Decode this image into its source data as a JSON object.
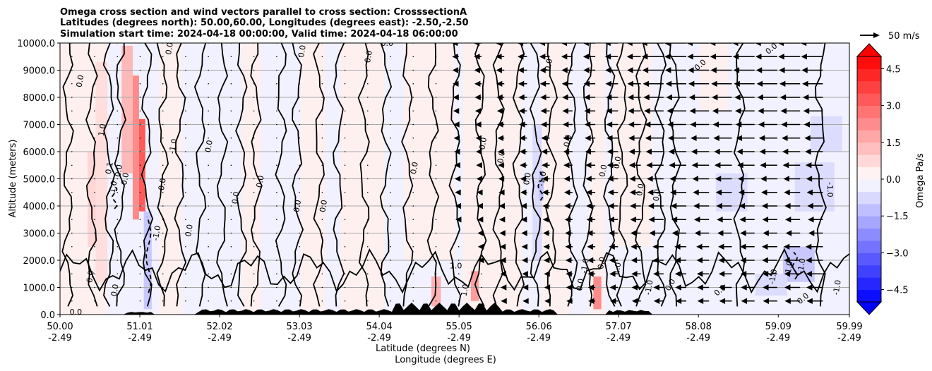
{
  "chart_data": {
    "type": "heatmap",
    "title_lines": [
      "Omega cross section and wind vectors parallel to cross section: CrosssectionA",
      "Latitudes (degrees north): 50.00,60.00, Longitudes (degrees east): -2.50,-2.50",
      "Simulation start time: 2024-04-18 00:00:00, Valid time: 2024-04-18 06:00:00"
    ],
    "ylabel": "Altitude (meters)",
    "xlabel_lat": "Latitude (degrees N)",
    "xlabel_lon": "Longitude (degrees E)",
    "xlim": [
      50.0,
      59.99
    ],
    "ylim": [
      0,
      10000
    ],
    "grid": "horizontal",
    "x_ticks": [
      {
        "lat": "50.00",
        "lon": "-2.49",
        "value": 50.0
      },
      {
        "lat": "51.01",
        "lon": "-2.49",
        "value": 51.01
      },
      {
        "lat": "52.02",
        "lon": "-2.49",
        "value": 52.02
      },
      {
        "lat": "53.03",
        "lon": "-2.49",
        "value": 53.03
      },
      {
        "lat": "54.04",
        "lon": "-2.49",
        "value": 54.04
      },
      {
        "lat": "55.05",
        "lon": "-2.49",
        "value": 55.05
      },
      {
        "lat": "56.06",
        "lon": "-2.49",
        "value": 56.06
      },
      {
        "lat": "57.07",
        "lon": "-2.49",
        "value": 57.07
      },
      {
        "lat": "58.08",
        "lon": "-2.49",
        "value": 58.08
      },
      {
        "lat": "59.09",
        "lon": "-2.49",
        "value": 59.09
      },
      {
        "lat": "59.99",
        "lon": "-2.49",
        "value": 59.99
      }
    ],
    "y_ticks": [
      {
        "label": "0.0",
        "value": 0
      },
      {
        "label": "1000.0",
        "value": 1000
      },
      {
        "label": "2000.0",
        "value": 2000
      },
      {
        "label": "3000.0",
        "value": 3000
      },
      {
        "label": "4000.0",
        "value": 4000
      },
      {
        "label": "5000.0",
        "value": 5000
      },
      {
        "label": "6000.0",
        "value": 6000
      },
      {
        "label": "7000.0",
        "value": 7000
      },
      {
        "label": "8000.0",
        "value": 8000
      },
      {
        "label": "9000.0",
        "value": 9000
      },
      {
        "label": "10000.0",
        "value": 10000
      }
    ],
    "colorbar": {
      "label": "Omega Pa/s",
      "vmin": -5.0,
      "vmax": 5.0,
      "ticks": [
        {
          "label": "4.5",
          "value": 4.5
        },
        {
          "label": "3.0",
          "value": 3.0
        },
        {
          "label": "1.5",
          "value": 1.5
        },
        {
          "label": "0.0",
          "value": 0.0
        },
        {
          "label": "−1.5",
          "value": -1.5
        },
        {
          "label": "−3.0",
          "value": -3.0
        },
        {
          "label": "−4.5",
          "value": -4.5
        }
      ]
    },
    "quiver_key": {
      "label": "50 m/s",
      "speed": 50
    },
    "contour_labels": [
      {
        "text": "0.0",
        "lat": 50.25,
        "alt": 8600,
        "rot": -80
      },
      {
        "text": "1.0",
        "lat": 50.53,
        "alt": 6800,
        "rot": -80
      },
      {
        "text": "0.1",
        "lat": 50.62,
        "alt": 5400,
        "rot": -80
      },
      {
        "text": "0.0",
        "lat": 50.74,
        "alt": 5300,
        "rot": -80
      },
      {
        "text": "0.0",
        "lat": 50.82,
        "alt": 5000,
        "rot": -80
      },
      {
        "text": "1.0",
        "lat": 50.67,
        "alt": 4700,
        "rot": -80
      },
      {
        "text": "-1.0",
        "lat": 51.22,
        "alt": 3000,
        "rot": -80
      },
      {
        "text": "0.0",
        "lat": 50.38,
        "alt": 1400,
        "rot": -80
      },
      {
        "text": "0.0",
        "lat": 50.69,
        "alt": 900,
        "rot": -80
      },
      {
        "text": "0.0",
        "lat": 51.29,
        "alt": 4800,
        "rot": -80
      },
      {
        "text": "0.0",
        "lat": 51.38,
        "alt": 9800,
        "rot": -80
      },
      {
        "text": "-1.0",
        "lat": 51.43,
        "alt": 6200,
        "rot": -80
      },
      {
        "text": "0.0",
        "lat": 51.63,
        "alt": 3100,
        "rot": -80
      },
      {
        "text": "0.0",
        "lat": 51.88,
        "alt": 6200,
        "rot": -80
      },
      {
        "text": "0.0",
        "lat": 52.22,
        "alt": 4300,
        "rot": -80
      },
      {
        "text": "0.0",
        "lat": 52.53,
        "alt": 4900,
        "rot": -80
      },
      {
        "text": "0.0",
        "lat": 53.0,
        "alt": 4000,
        "rot": -80
      },
      {
        "text": "0.0",
        "lat": 53.33,
        "alt": 4000,
        "rot": -80
      },
      {
        "text": "0.0",
        "lat": 53.06,
        "alt": 9700,
        "rot": -80
      },
      {
        "text": "0.0",
        "lat": 53.9,
        "alt": 9500,
        "rot": -80
      },
      {
        "text": "0.0",
        "lat": 54.14,
        "alt": 10000,
        "rot": 0
      },
      {
        "text": "0.0",
        "lat": 54.48,
        "alt": 5400,
        "rot": -80
      },
      {
        "text": "0.0",
        "lat": 55.35,
        "alt": 6300,
        "rot": -80
      },
      {
        "text": "0.0",
        "lat": 55.58,
        "alt": 5800,
        "rot": -80
      },
      {
        "text": "0.0",
        "lat": 55.91,
        "alt": 5000,
        "rot": -80
      },
      {
        "text": "-1.0",
        "lat": 56.1,
        "alt": 5000,
        "rot": -80
      },
      {
        "text": "0.0",
        "lat": 56.18,
        "alt": 9200,
        "rot": -80
      },
      {
        "text": "0.0",
        "lat": 56.42,
        "alt": 6400,
        "rot": -80
      },
      {
        "text": "0.0",
        "lat": 56.87,
        "alt": 5300,
        "rot": -80
      },
      {
        "text": "0.0",
        "lat": 57.05,
        "alt": 5600,
        "rot": -80
      },
      {
        "text": "0.0",
        "lat": 57.34,
        "alt": 4600,
        "rot": -80
      },
      {
        "text": "0.0",
        "lat": 57.55,
        "alt": 4400,
        "rot": -80
      },
      {
        "text": "0.0",
        "lat": 58.1,
        "alt": 9200,
        "rot": -40
      },
      {
        "text": "0.0",
        "lat": 59.0,
        "alt": 9800,
        "rot": -40
      },
      {
        "text": "-1.0",
        "lat": 59.75,
        "alt": 4600,
        "rot": 90
      },
      {
        "text": "1.0",
        "lat": 55.01,
        "alt": 1800,
        "rot": 0
      },
      {
        "text": "1.0",
        "lat": 55.12,
        "alt": 900,
        "rot": -80
      },
      {
        "text": "-1.0",
        "lat": 56.64,
        "alt": 1800,
        "rot": -80
      },
      {
        "text": "0.0",
        "lat": 56.58,
        "alt": 1100,
        "rot": -80
      },
      {
        "text": "0.0",
        "lat": 56.85,
        "alt": 1900,
        "rot": -80
      },
      {
        "text": "1.0",
        "lat": 57.05,
        "alt": 1700,
        "rot": -80
      },
      {
        "text": "-1.0",
        "lat": 57.45,
        "alt": 1000,
        "rot": -80
      },
      {
        "text": "0.0",
        "lat": 57.72,
        "alt": 1100,
        "rot": -60
      },
      {
        "text": "-1.0",
        "lat": 59.02,
        "alt": 1400,
        "rot": -80
      },
      {
        "text": "-1.0",
        "lat": 59.22,
        "alt": 1700,
        "rot": -80
      },
      {
        "text": "-1.0",
        "lat": 59.38,
        "alt": 1800,
        "rot": -80
      },
      {
        "text": "-1.0",
        "lat": 59.83,
        "alt": 1000,
        "rot": -80
      },
      {
        "text": "0.0",
        "lat": 58.35,
        "alt": 900,
        "rot": -40
      },
      {
        "text": "0.0",
        "lat": 59.4,
        "alt": 600,
        "rot": -40
      },
      {
        "text": "0.0",
        "lat": 50.2,
        "alt": 100,
        "rot": 0
      }
    ]
  }
}
